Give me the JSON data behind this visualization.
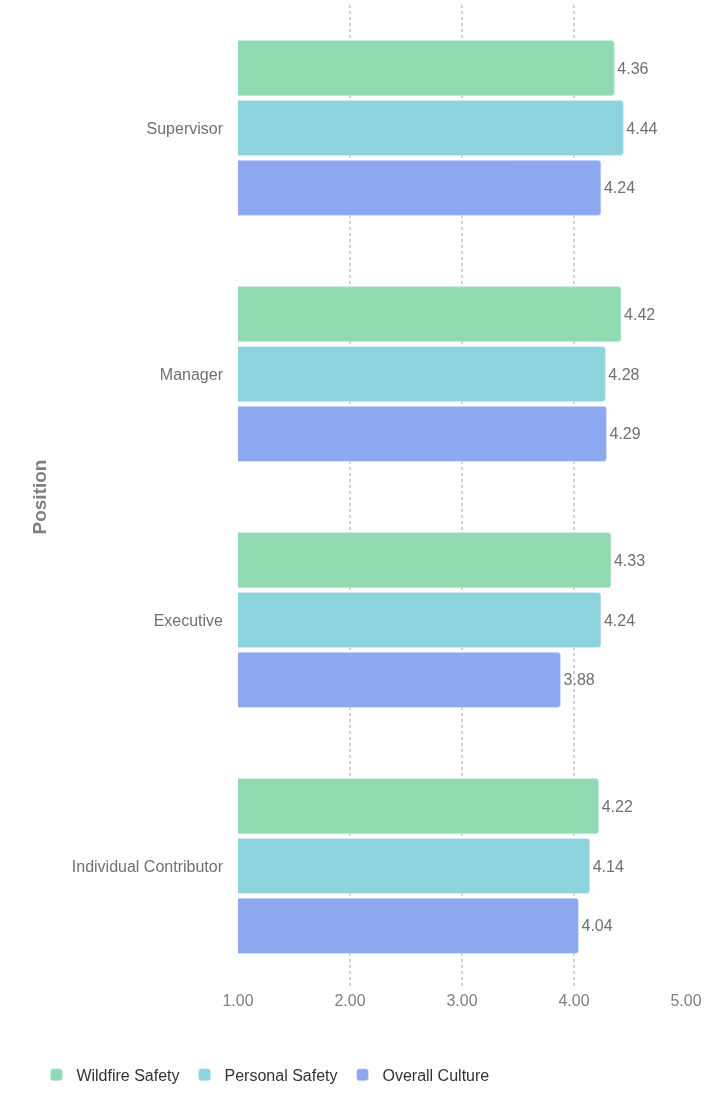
{
  "chart_data": {
    "type": "bar",
    "orientation": "horizontal",
    "ylabel": "Position",
    "categories": [
      "Supervisor",
      "Manager",
      "Executive",
      "Individual Contributor"
    ],
    "series": [
      {
        "name": "Wildfire Safety",
        "color": "#8fdab0",
        "values": [
          4.36,
          4.42,
          4.33,
          4.22
        ]
      },
      {
        "name": "Personal Safety",
        "color": "#8dd3dd",
        "values": [
          4.44,
          4.28,
          4.24,
          4.14
        ]
      },
      {
        "name": "Overall Culture",
        "color": "#8ca9f0",
        "values": [
          4.24,
          4.29,
          3.88,
          4.04
        ]
      }
    ],
    "xlim": [
      1,
      5
    ],
    "xticks": [
      {
        "value": 1,
        "label": "1.00"
      },
      {
        "value": 2,
        "label": "2.00"
      },
      {
        "value": 3,
        "label": "3.00"
      },
      {
        "value": 4,
        "label": "4.00"
      },
      {
        "value": 5,
        "label": "5.00"
      }
    ],
    "data_labels": true,
    "grid": "x",
    "legend": "bottom left"
  }
}
